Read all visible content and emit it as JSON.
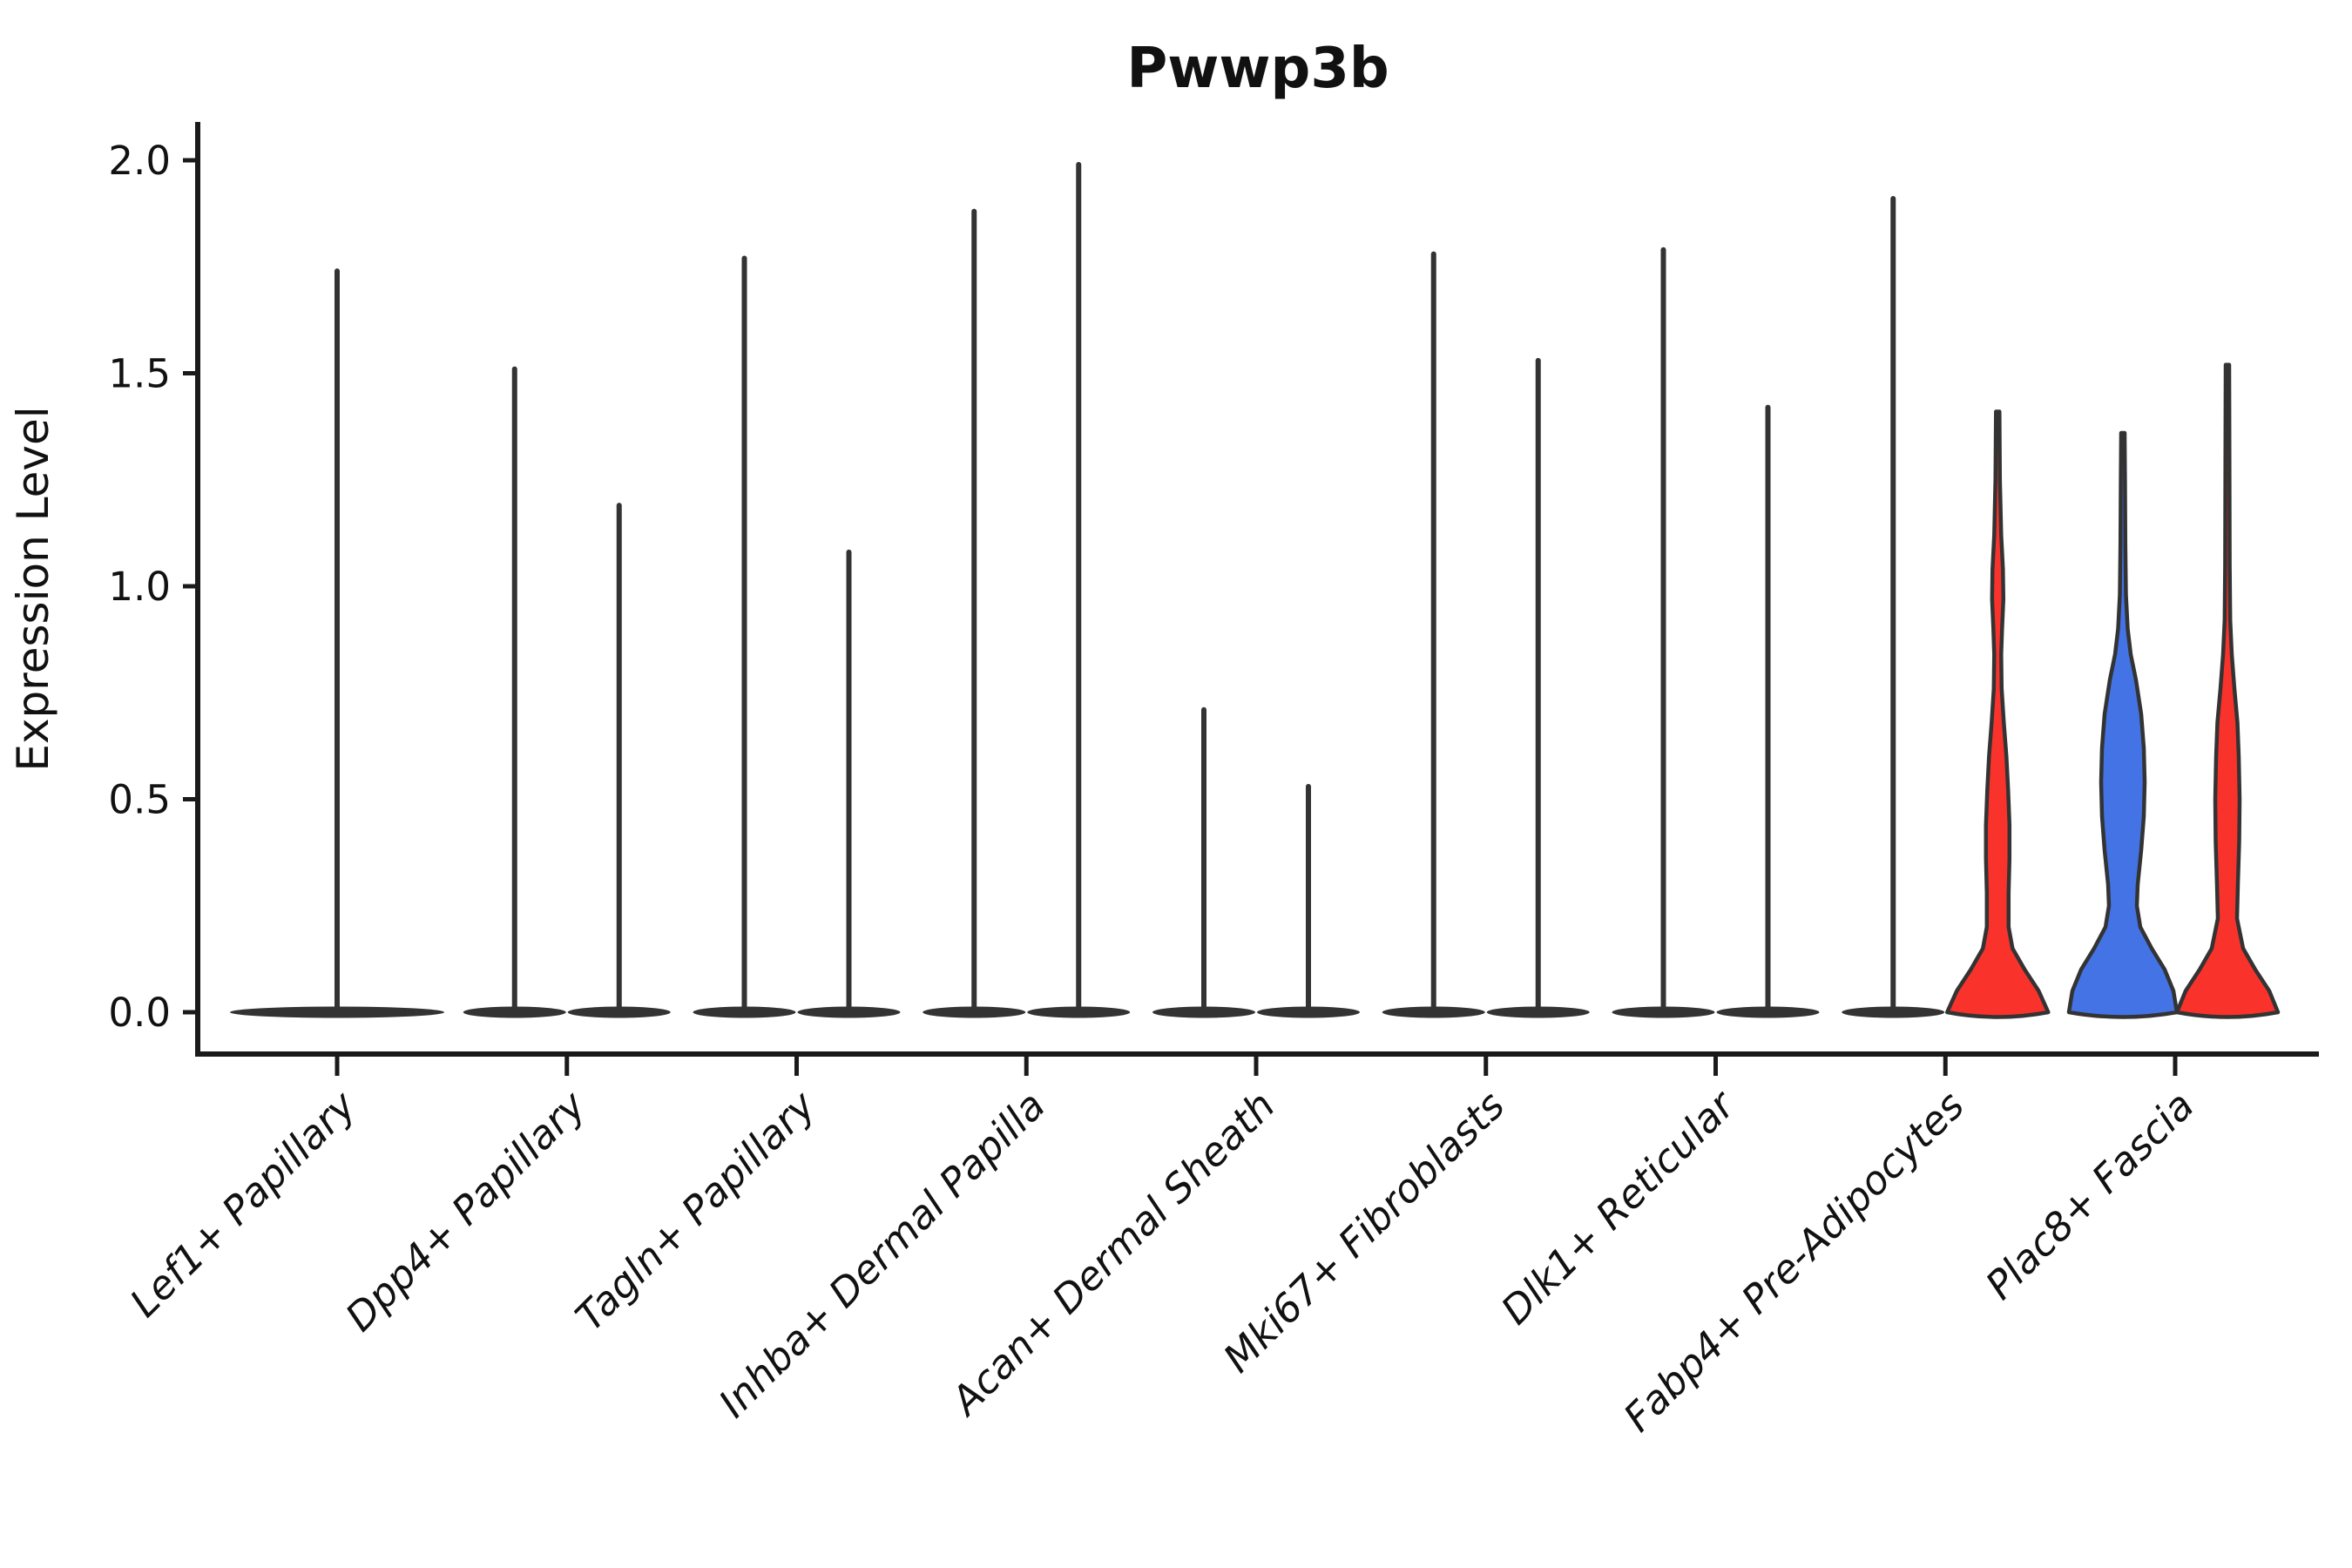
{
  "chart_data": {
    "type": "violin",
    "title": "Pwwp3b",
    "ylabel": "Expression Level",
    "xlabel": "",
    "ylim": [
      0.0,
      2.05
    ],
    "yticks": [
      0.0,
      0.5,
      1.0,
      1.5,
      2.0
    ],
    "grid": false,
    "legend": "none",
    "colors": {
      "default": "#333333",
      "red": "#FA322C",
      "blue": "#4473E5",
      "axis": "#1a1a1a"
    },
    "categories": [
      {
        "label": "Lef1+ Papillary",
        "violins": [
          {
            "group": 1,
            "style": "spike",
            "color_key": "default",
            "rel_x": 0,
            "base_width": 246,
            "max_expression": 1.74
          }
        ]
      },
      {
        "label": "Dpp4+ Papillary",
        "violins": [
          {
            "group": 1,
            "style": "spike",
            "color_key": "default",
            "rel_x": -60,
            "base_width": 118,
            "max_expression": 1.51
          },
          {
            "group": 2,
            "style": "spike",
            "color_key": "default",
            "rel_x": 60,
            "base_width": 118,
            "max_expression": 1.19
          }
        ]
      },
      {
        "label": "Tagln+ Papillary",
        "violins": [
          {
            "group": 1,
            "style": "spike",
            "color_key": "default",
            "rel_x": -60,
            "base_width": 118,
            "max_expression": 1.77
          },
          {
            "group": 2,
            "style": "spike",
            "color_key": "default",
            "rel_x": 60,
            "base_width": 118,
            "max_expression": 1.08
          }
        ]
      },
      {
        "label": "Inhba+ Dermal Papilla",
        "violins": [
          {
            "group": 1,
            "style": "spike",
            "color_key": "default",
            "rel_x": -60,
            "base_width": 118,
            "max_expression": 1.88
          },
          {
            "group": 2,
            "style": "spike",
            "color_key": "default",
            "rel_x": 60,
            "base_width": 118,
            "max_expression": 1.99
          }
        ]
      },
      {
        "label": "Acan+ Dermal Sheath",
        "violins": [
          {
            "group": 1,
            "style": "spike",
            "color_key": "default",
            "rel_x": -60,
            "base_width": 118,
            "max_expression": 0.71
          },
          {
            "group": 2,
            "style": "spike",
            "color_key": "default",
            "rel_x": 60,
            "base_width": 118,
            "max_expression": 0.53
          }
        ]
      },
      {
        "label": "Mki67+ Fibroblasts",
        "violins": [
          {
            "group": 1,
            "style": "spike",
            "color_key": "default",
            "rel_x": -60,
            "base_width": 118,
            "max_expression": 1.78
          },
          {
            "group": 2,
            "style": "spike",
            "color_key": "default",
            "rel_x": 60,
            "base_width": 118,
            "max_expression": 1.53
          }
        ]
      },
      {
        "label": "Dlk1+ Reticular",
        "violins": [
          {
            "group": 1,
            "style": "spike",
            "color_key": "default",
            "rel_x": -60,
            "base_width": 118,
            "max_expression": 1.79
          },
          {
            "group": 2,
            "style": "spike",
            "color_key": "default",
            "rel_x": 60,
            "base_width": 118,
            "max_expression": 1.42
          }
        ]
      },
      {
        "label": "Fabp4+ Pre-Adipocytes",
        "violins": [
          {
            "group": 1,
            "style": "spike",
            "color_key": "default",
            "rel_x": -60,
            "base_width": 118,
            "max_expression": 1.91
          },
          {
            "group": 2,
            "style": "violin",
            "color_key": "red",
            "rel_x": 60,
            "base_width": 118,
            "max_expression": 1.41,
            "profile": [
              [
                0,
                58
              ],
              [
                0.05,
                47
              ],
              [
                0.1,
                31
              ],
              [
                0.15,
                17
              ],
              [
                0.2,
                12.5
              ],
              [
                0.28,
                12.5
              ],
              [
                0.36,
                13.5
              ],
              [
                0.44,
                13.5
              ],
              [
                0.52,
                12
              ],
              [
                0.6,
                10
              ],
              [
                0.68,
                7
              ],
              [
                0.76,
                4.5
              ],
              [
                0.84,
                4
              ],
              [
                0.9,
                5
              ],
              [
                0.97,
                6.5
              ],
              [
                1.04,
                6
              ],
              [
                1.12,
                4
              ],
              [
                1.25,
                2.6
              ],
              [
                1.41,
                2
              ]
            ]
          }
        ]
      },
      {
        "label": "Plac8+ Fascia",
        "violins": [
          {
            "group": 1,
            "style": "violin",
            "color_key": "blue",
            "rel_x": -60,
            "base_width": 128,
            "max_expression": 1.36,
            "profile": [
              [
                0,
                62
              ],
              [
                0.05,
                58
              ],
              [
                0.1,
                48
              ],
              [
                0.15,
                33
              ],
              [
                0.2,
                20
              ],
              [
                0.25,
                16
              ],
              [
                0.3,
                17
              ],
              [
                0.38,
                21
              ],
              [
                0.46,
                24
              ],
              [
                0.54,
                25
              ],
              [
                0.62,
                24
              ],
              [
                0.7,
                21
              ],
              [
                0.78,
                15
              ],
              [
                0.84,
                9
              ],
              [
                0.9,
                5.5
              ],
              [
                0.98,
                3.5
              ],
              [
                1.1,
                2.8
              ],
              [
                1.25,
                2.4
              ],
              [
                1.36,
                2
              ]
            ]
          },
          {
            "group": 2,
            "style": "violin",
            "color_key": "red",
            "rel_x": 60,
            "base_width": 118,
            "max_expression": 1.52,
            "profile": [
              [
                0,
                58
              ],
              [
                0.05,
                48
              ],
              [
                0.1,
                32
              ],
              [
                0.15,
                18
              ],
              [
                0.22,
                11
              ],
              [
                0.3,
                12
              ],
              [
                0.4,
                13.5
              ],
              [
                0.5,
                14
              ],
              [
                0.6,
                13
              ],
              [
                0.68,
                11.5
              ],
              [
                0.76,
                8
              ],
              [
                0.84,
                5
              ],
              [
                0.92,
                3.2
              ],
              [
                1.05,
                2.6
              ],
              [
                1.3,
                2.3
              ],
              [
                1.52,
                2
              ]
            ]
          }
        ]
      }
    ]
  }
}
